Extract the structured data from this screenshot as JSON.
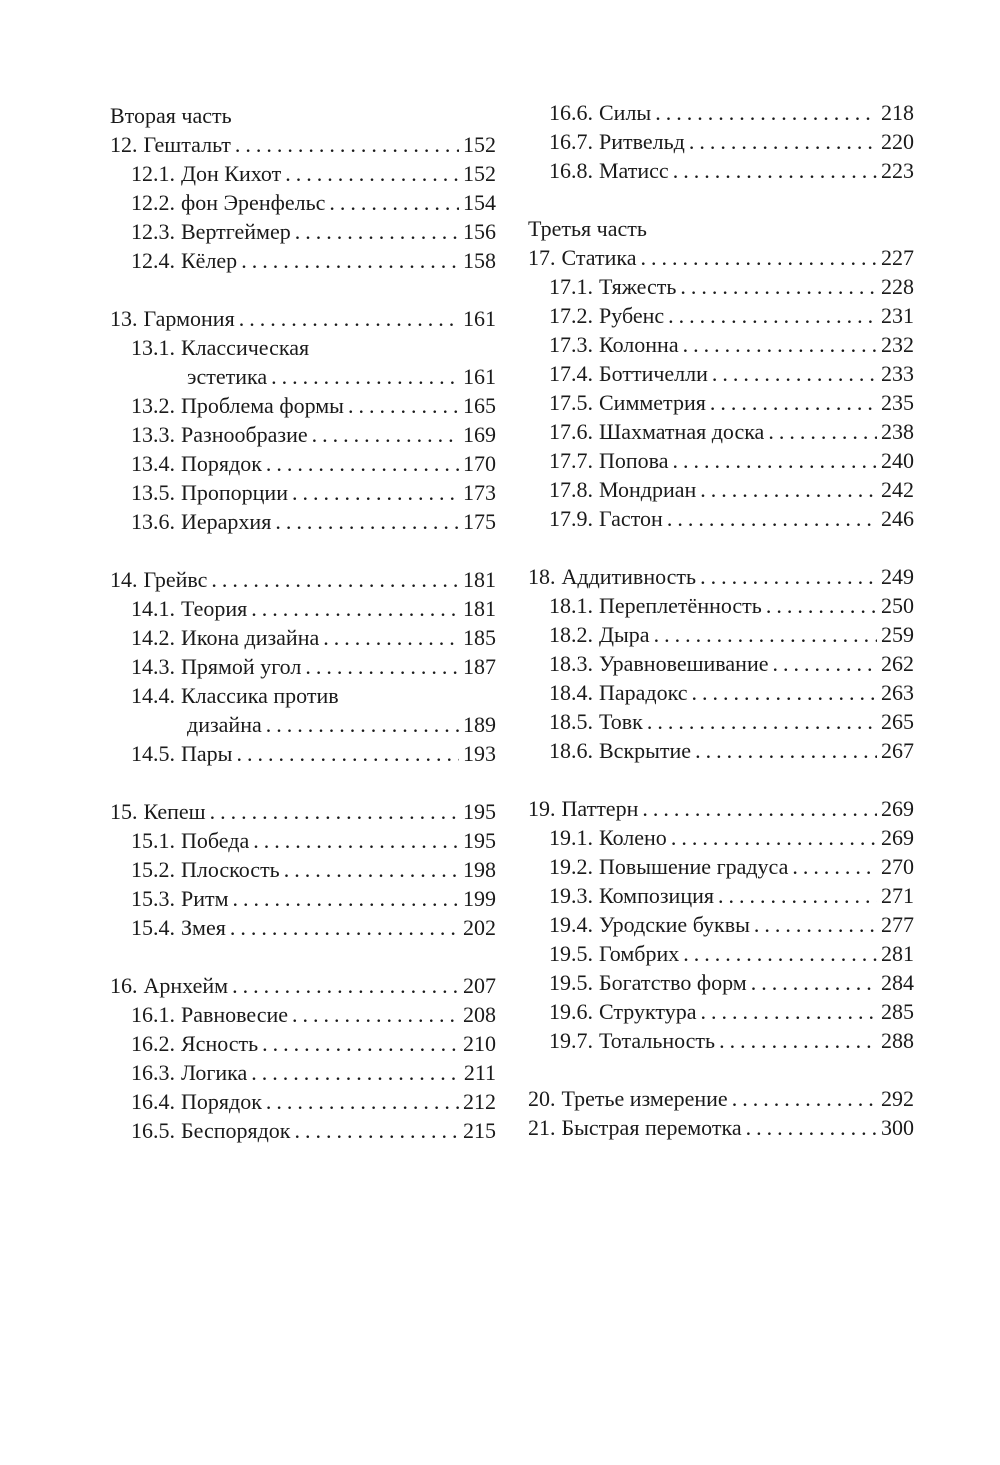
{
  "columns": [
    {
      "id": "left",
      "rows": [
        {
          "type": "part",
          "title": "Вторая часть"
        },
        {
          "type": "chapter",
          "num": "12.",
          "title": "Гештальт",
          "page": "152"
        },
        {
          "type": "sub",
          "num": "12.1.",
          "title": "Дон Кихот",
          "page": "152"
        },
        {
          "type": "sub",
          "num": "12.2.",
          "title": "фон Эренфельс",
          "page": "154"
        },
        {
          "type": "sub",
          "num": "12.3.",
          "title": "Вертгеймер",
          "page": "156"
        },
        {
          "type": "sub",
          "num": "12.4.",
          "title": "Кёлер",
          "page": "158"
        },
        {
          "type": "gap"
        },
        {
          "type": "chapter",
          "num": "13.",
          "title": "Гармония",
          "page": "161"
        },
        {
          "type": "subwrap",
          "num": "13.1.",
          "title": "Классическая"
        },
        {
          "type": "cont",
          "title": "эстетика",
          "page": "161"
        },
        {
          "type": "sub",
          "num": "13.2.",
          "title": "Проблема формы",
          "page": "165"
        },
        {
          "type": "sub",
          "num": "13.3.",
          "title": "Разнообразие",
          "page": "169"
        },
        {
          "type": "sub",
          "num": "13.4.",
          "title": "Порядок",
          "page": "170"
        },
        {
          "type": "sub",
          "num": "13.5.",
          "title": "Пропорции",
          "page": "173"
        },
        {
          "type": "sub",
          "num": "13.6.",
          "title": "Иерархия",
          "page": "175"
        },
        {
          "type": "gap"
        },
        {
          "type": "chapter",
          "num": "14.",
          "title": "Грейвс",
          "page": "181"
        },
        {
          "type": "sub",
          "num": "14.1.",
          "title": "Теория",
          "page": "181"
        },
        {
          "type": "sub",
          "num": "14.2.",
          "title": "Икона дизайна",
          "page": "185"
        },
        {
          "type": "sub",
          "num": "14.3.",
          "title": "Прямой угол",
          "page": "187"
        },
        {
          "type": "subwrap",
          "num": "14.4.",
          "title": "Классика против"
        },
        {
          "type": "cont",
          "title": "дизайна",
          "page": "189"
        },
        {
          "type": "sub",
          "num": "14.5.",
          "title": "Пары",
          "page": "193"
        },
        {
          "type": "gap"
        },
        {
          "type": "chapter",
          "num": "15.",
          "title": "Кепеш",
          "page": "195"
        },
        {
          "type": "sub",
          "num": "15.1.",
          "title": "Победа",
          "page": "195"
        },
        {
          "type": "sub",
          "num": "15.2.",
          "title": "Плоскость",
          "page": "198"
        },
        {
          "type": "sub",
          "num": "15.3.",
          "title": "Ритм",
          "page": "199"
        },
        {
          "type": "sub",
          "num": "15.4.",
          "title": "Змея",
          "page": "202"
        },
        {
          "type": "gap"
        },
        {
          "type": "chapter",
          "num": "16.",
          "title": "Арнхейм",
          "page": "207"
        },
        {
          "type": "sub",
          "num": "16.1.",
          "title": "Равновесие",
          "page": "208"
        },
        {
          "type": "sub",
          "num": "16.2.",
          "title": "Ясность",
          "page": "210"
        },
        {
          "type": "sub",
          "num": "16.3.",
          "title": "Логика",
          "page": "211"
        },
        {
          "type": "sub",
          "num": "16.4.",
          "title": "Порядок",
          "page": "212"
        },
        {
          "type": "sub",
          "num": "16.5.",
          "title": "Беспорядок",
          "page": "215"
        }
      ]
    },
    {
      "id": "right",
      "rows": [
        {
          "type": "sub",
          "num": "16.6.",
          "title": "Силы",
          "page": "218"
        },
        {
          "type": "sub",
          "num": "16.7.",
          "title": "Ритвельд",
          "page": "220"
        },
        {
          "type": "sub",
          "num": "16.8.",
          "title": "Матисс",
          "page": "223"
        },
        {
          "type": "gap"
        },
        {
          "type": "part",
          "title": "Третья часть"
        },
        {
          "type": "chapter",
          "num": "17.",
          "title": "Статика",
          "page": "227"
        },
        {
          "type": "sub",
          "num": "17.1.",
          "title": "Тяжесть",
          "page": "228"
        },
        {
          "type": "sub",
          "num": "17.2.",
          "title": "Рубенс",
          "page": "231"
        },
        {
          "type": "sub",
          "num": "17.3.",
          "title": "Колонна",
          "page": "232"
        },
        {
          "type": "sub",
          "num": "17.4.",
          "title": "Боттичелли",
          "page": "233"
        },
        {
          "type": "sub",
          "num": "17.5.",
          "title": "Симметрия",
          "page": "235"
        },
        {
          "type": "sub",
          "num": "17.6.",
          "title": "Шахматная доска",
          "page": "238"
        },
        {
          "type": "sub",
          "num": "17.7.",
          "title": "Попова",
          "page": "240"
        },
        {
          "type": "sub",
          "num": "17.8.",
          "title": "Мондриан",
          "page": "242"
        },
        {
          "type": "sub",
          "num": "17.9.",
          "title": "Гастон",
          "page": "246"
        },
        {
          "type": "gap"
        },
        {
          "type": "chapter",
          "num": "18.",
          "title": "Аддитивность",
          "page": "249"
        },
        {
          "type": "sub",
          "num": "18.1.",
          "title": "Переплетённость",
          "page": "250"
        },
        {
          "type": "sub",
          "num": "18.2.",
          "title": "Дыра",
          "page": "259"
        },
        {
          "type": "sub",
          "num": "18.3.",
          "title": "Уравновешивание",
          "page": "262"
        },
        {
          "type": "sub",
          "num": "18.4.",
          "title": "Парадокс",
          "page": "263"
        },
        {
          "type": "sub",
          "num": "18.5.",
          "title": "Товк",
          "page": "265"
        },
        {
          "type": "sub",
          "num": "18.6.",
          "title": "Вскрытие",
          "page": "267"
        },
        {
          "type": "gap"
        },
        {
          "type": "chapter",
          "num": "19.",
          "title": "Паттерн",
          "page": "269"
        },
        {
          "type": "sub",
          "num": "19.1.",
          "title": "Колено",
          "page": "269"
        },
        {
          "type": "sub",
          "num": "19.2.",
          "title": "Повышение градуса",
          "page": "270"
        },
        {
          "type": "sub",
          "num": "19.3.",
          "title": "Композиция",
          "page": "271"
        },
        {
          "type": "sub",
          "num": "19.4.",
          "title": "Уродские буквы",
          "page": "277"
        },
        {
          "type": "sub",
          "num": "19.5.",
          "title": "Гомбрих",
          "page": "281"
        },
        {
          "type": "sub",
          "num": "19.5.",
          "title": "Богатство форм",
          "page": "284"
        },
        {
          "type": "sub",
          "num": "19.6.",
          "title": "Структура",
          "page": "285"
        },
        {
          "type": "sub",
          "num": "19.7.",
          "title": "Тотальность",
          "page": "288"
        },
        {
          "type": "gap"
        },
        {
          "type": "chapter",
          "num": "20.",
          "title": "Третье измерение",
          "page": "292"
        },
        {
          "type": "chapter",
          "num": "21.",
          "title": "Быстрая перемотка",
          "page": "300"
        }
      ]
    }
  ]
}
